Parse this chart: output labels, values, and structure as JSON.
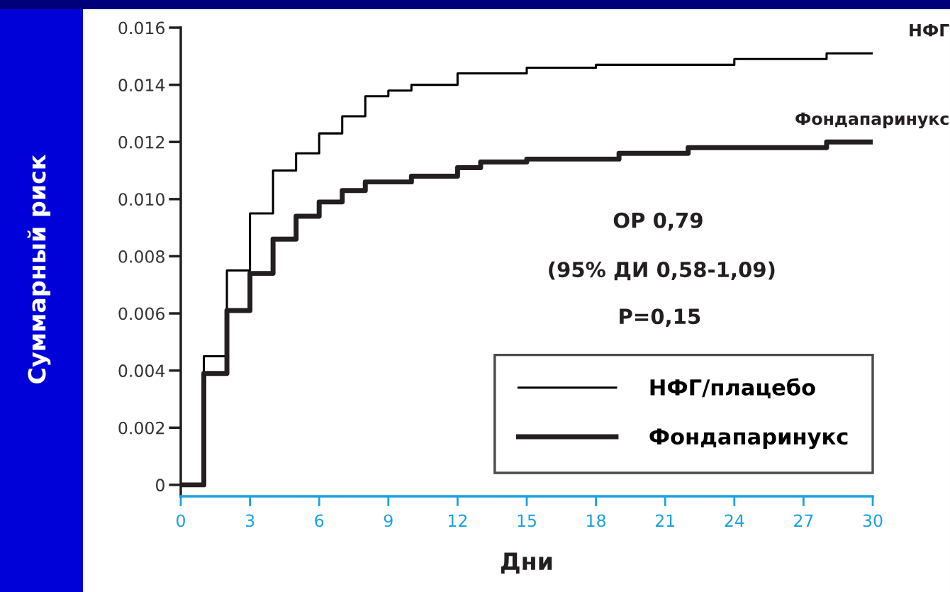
{
  "chart_data": {
    "type": "step",
    "xlabel": "Дни",
    "ylabel": "Суммарный риск",
    "xlim": [
      0,
      30
    ],
    "xticks": [
      0,
      3,
      6,
      9,
      12,
      15,
      18,
      21,
      24,
      27,
      30
    ],
    "ylim": [
      -0.0004,
      0.016
    ],
    "yticks": [
      0,
      0.002,
      0.004,
      0.006,
      0.008,
      {
        "value": 0.01,
        "label": "0.010"
      },
      0.012,
      0.014,
      0.016
    ],
    "series": [
      {
        "name": "НФГ/плацебо",
        "color": "#000000",
        "x": [
          0,
          1,
          2,
          3,
          4,
          5,
          6,
          7,
          8,
          9,
          10,
          12,
          15,
          18,
          24,
          28,
          30
        ],
        "values": [
          0,
          0.0045,
          0.0075,
          0.0095,
          0.011,
          0.0116,
          0.0123,
          0.0129,
          0.0136,
          0.0138,
          0.014,
          0.0144,
          0.0146,
          0.0147,
          0.0149,
          0.0151,
          0.0151
        ]
      },
      {
        "name": "Фондапаринукс",
        "color": "#231f20",
        "x": [
          0,
          1,
          2,
          3,
          4,
          5,
          6,
          7,
          8,
          10,
          12,
          13,
          15,
          19,
          22,
          28,
          30
        ],
        "values": [
          0,
          0.0039,
          0.0061,
          0.0074,
          0.0086,
          0.0094,
          0.0099,
          0.0103,
          0.0106,
          0.0108,
          0.0111,
          0.0113,
          0.0114,
          0.0116,
          0.0118,
          0.012,
          0.012
        ]
      }
    ],
    "annotations": [
      {
        "text": "НФГ",
        "x": 30,
        "y": 0.0151
      },
      {
        "text": "Фондапаринукс",
        "x": 30,
        "y": 0.012
      },
      "ОР 0,79",
      "(95% ДИ 0,58-1,09)",
      "P=0,15"
    ],
    "legend": "bottom right",
    "grid": false,
    "marker": "none",
    "line_style": "solid"
  }
}
